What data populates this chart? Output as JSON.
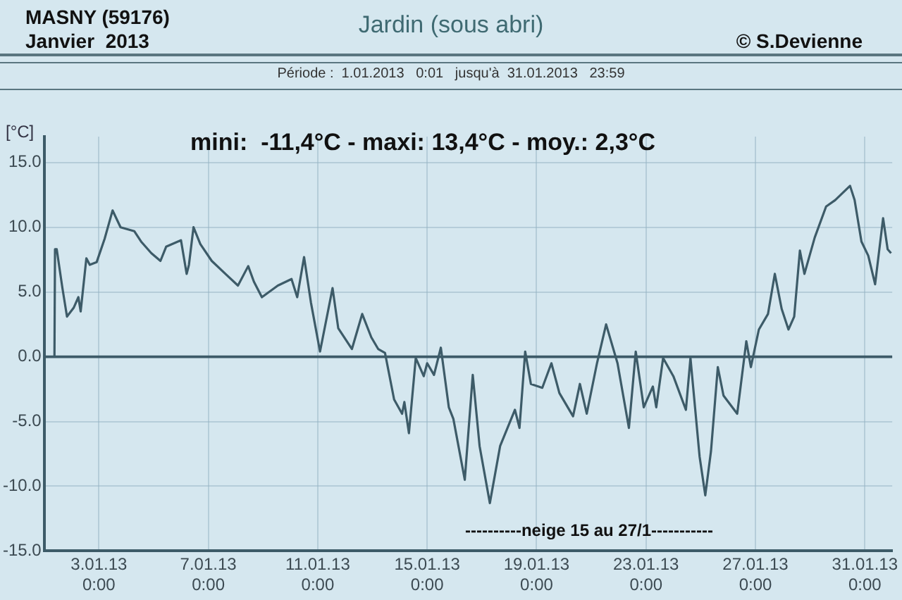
{
  "chart_data": {
    "type": "line",
    "title": "Jardin (sous abri)",
    "subtitle": "Période :  1.01.2013   0:01   jusqu'à  31.01.2013   23:59",
    "ylabel": "[°C]",
    "annotations": [
      "MASNY (59176)",
      "Janvier  2013",
      "© S.Devienne",
      "mini:  -11,4°C - maxi: 13,4°C - moy.: 2,3°C",
      "----------neige 15 au 27/1-----------"
    ],
    "x": [
      "2013-01-01T09:00",
      "2013-01-01T09:30",
      "2013-01-01T11:00",
      "2013-01-01T16:00",
      "2013-01-01T20:00",
      "2013-01-02T02:00",
      "2013-01-02T06:00",
      "2013-01-02T08:00",
      "2013-01-02T13:00",
      "2013-01-02T16:00",
      "2013-01-02T22:00",
      "2013-01-03T05:00",
      "2013-01-03T12:00",
      "2013-01-03T19:00",
      "2013-01-04T07:00",
      "2013-01-04T13:00",
      "2013-01-04T22:00",
      "2013-01-05T06:00",
      "2013-01-05T11:00",
      "2013-01-06T00:00",
      "2013-01-06T05:00",
      "2013-01-06T07:00",
      "2013-01-06T11:00",
      "2013-01-06T17:00",
      "2013-01-07T03:00",
      "2013-01-07T15:00",
      "2013-01-08T02:00",
      "2013-01-08T11:00",
      "2013-01-08T16:00",
      "2013-01-08T23:00",
      "2013-01-09T13:00",
      "2013-01-10T01:00",
      "2013-01-10T06:00",
      "2013-01-10T12:00",
      "2013-01-10T18:00",
      "2013-01-11T02:00",
      "2013-01-11T13:00",
      "2013-01-11T18:00",
      "2013-01-12T06:00",
      "2013-01-12T15:00",
      "2013-01-12T23:00",
      "2013-01-13T05:00",
      "2013-01-13T11:00",
      "2013-01-13T19:00",
      "2013-01-14T02:00",
      "2013-01-14T04:00",
      "2013-01-14T08:00",
      "2013-01-14T14:00",
      "2013-01-14T21:00",
      "2013-01-15T00:00",
      "2013-01-15T06:00",
      "2013-01-15T12:00",
      "2013-01-15T19:00",
      "2013-01-15T23:00",
      "2013-01-16T09:00",
      "2013-01-16T16:00",
      "2013-01-16T22:00",
      "2013-01-17T07:00",
      "2013-01-17T16:00",
      "2013-01-18T05:00",
      "2013-01-18T09:00",
      "2013-01-18T14:00",
      "2013-01-18T19:00",
      "2013-01-19T05:00",
      "2013-01-19T13:00",
      "2013-01-19T20:00",
      "2013-01-20T08:00",
      "2013-01-20T14:00",
      "2013-01-20T20:00",
      "2013-01-21T05:00",
      "2013-01-21T13:00",
      "2013-01-21T23:00",
      "2013-01-22T09:00",
      "2013-01-22T15:00",
      "2013-01-22T22:00",
      "2013-01-23T06:00",
      "2013-01-23T09:00",
      "2013-01-23T15:00",
      "2013-01-24T00:00",
      "2013-01-24T11:00",
      "2013-01-24T15:00",
      "2013-01-24T23:00",
      "2013-01-25T04:00",
      "2013-01-25T09:00",
      "2013-01-25T15:00",
      "2013-01-25T20:00",
      "2013-01-26T08:00",
      "2013-01-26T16:00",
      "2013-01-26T20:00",
      "2013-01-27T03:00",
      "2013-01-27T11:00",
      "2013-01-27T17:00",
      "2013-01-27T23:00",
      "2013-01-28T05:00",
      "2013-01-28T10:00",
      "2013-01-28T15:00",
      "2013-01-28T19:00",
      "2013-01-29T04:00",
      "2013-01-29T14:00",
      "2013-01-29T22:00",
      "2013-01-30T11:00",
      "2013-01-30T15:00",
      "2013-01-30T21:00",
      "2013-01-31T03:00",
      "2013-01-31T09:00",
      "2013-01-31T16:00",
      "2013-01-31T20:00",
      "2013-01-31T23:00"
    ],
    "series": [
      {
        "color": "#3d5b68",
        "values": [
          0,
          8.3,
          8.3,
          5.3,
          3.1,
          3.8,
          4.6,
          3.5,
          7.6,
          7.1,
          7.3,
          9.1,
          11.3,
          10.0,
          9.7,
          8.9,
          8.0,
          7.4,
          8.5,
          9.0,
          6.4,
          7.1,
          10.0,
          8.7,
          7.4,
          6.4,
          5.5,
          7.0,
          5.8,
          4.6,
          5.5,
          6.0,
          4.6,
          7.7,
          4.2,
          0.4,
          5.3,
          2.2,
          0.6,
          3.3,
          1.5,
          0.6,
          0.3,
          -3.3,
          -4.4,
          -3.5,
          -5.9,
          -0.1,
          -1.5,
          -0.5,
          -1.4,
          0.7,
          -3.9,
          -4.8,
          -9.5,
          -1.4,
          -6.9,
          -11.3,
          -6.9,
          -4.1,
          -5.5,
          0.4,
          -2.1,
          -2.4,
          -0.5,
          -2.8,
          -4.6,
          -2.1,
          -4.4,
          -0.5,
          2.5,
          -0.5,
          -5.5,
          0.4,
          -3.9,
          -2.3,
          -3.9,
          -0.1,
          -1.5,
          -4.1,
          -0.1,
          -7.7,
          -10.7,
          -7.3,
          -0.8,
          -3.0,
          -4.4,
          1.2,
          -0.8,
          2.1,
          3.3,
          6.4,
          3.7,
          2.1,
          3.1,
          8.2,
          6.4,
          9.2,
          11.6,
          12.1,
          13.2,
          12.1,
          8.9,
          7.8,
          5.6,
          10.7,
          8.3,
          8.0
        ]
      }
    ],
    "xlim": [
      "2013-01-01T00:00",
      "2013-02-01T00:00"
    ],
    "xticks": [
      {
        "value": "2013-01-03T00:00",
        "label": "3.01.13\n0:00"
      },
      {
        "value": "2013-01-07T00:00",
        "label": "7.01.13\n0:00"
      },
      {
        "value": "2013-01-11T00:00",
        "label": "11.01.13\n0:00"
      },
      {
        "value": "2013-01-15T00:00",
        "label": "15.01.13\n0:00"
      },
      {
        "value": "2013-01-19T00:00",
        "label": "19.01.13\n0:00"
      },
      {
        "value": "2013-01-23T00:00",
        "label": "23.01.13\n0:00"
      },
      {
        "value": "2013-01-27T00:00",
        "label": "27.01.13\n0:00"
      },
      {
        "value": "2013-01-31T00:00",
        "label": "31.01.13\n0:00"
      }
    ],
    "ylim": [
      -15,
      17
    ],
    "yticks": [
      {
        "value": -15,
        "label": "-15.0"
      },
      {
        "value": -10,
        "label": "-10.0"
      },
      {
        "value": -5,
        "label": "-5.0"
      },
      {
        "value": 0,
        "label": "0.0"
      },
      {
        "value": 5,
        "label": "5.0"
      },
      {
        "value": 10,
        "label": "10.0"
      },
      {
        "value": 15,
        "label": "15.0"
      }
    ],
    "ref_lines": [
      {
        "axis": "y",
        "value": 0,
        "color": "#3d5b68"
      }
    ],
    "grid": true,
    "legend": false,
    "marker": "none",
    "line_style": "solid"
  }
}
